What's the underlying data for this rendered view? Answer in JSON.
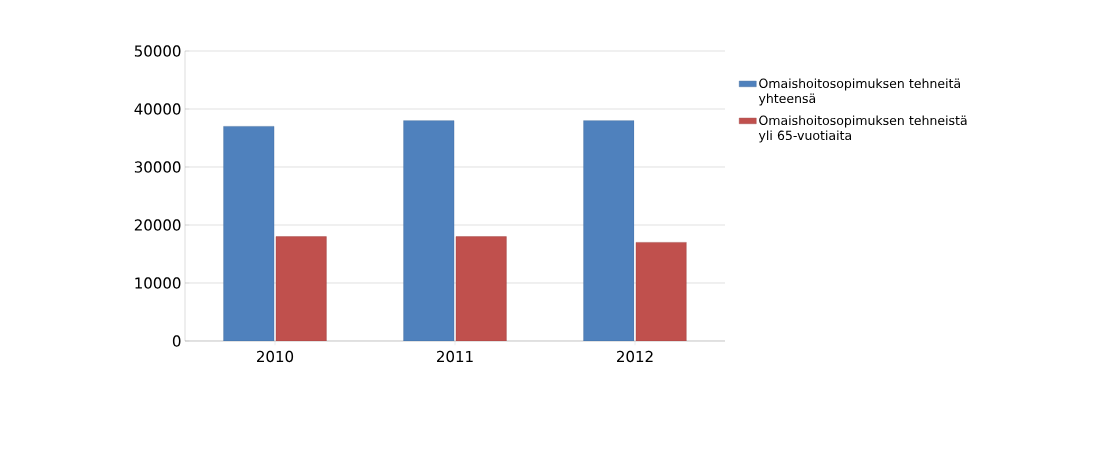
{
  "chart_data": {
    "type": "bar",
    "categories": [
      "2010",
      "2011",
      "2012"
    ],
    "series": [
      {
        "name": "Omaishoitosopimuksen tehneitä yhteensä",
        "color": "#4f81bd",
        "values": [
          37000,
          38000,
          38000
        ]
      },
      {
        "name": "Omaishoitosopimuksen tehneistä yli 65-vuotiaita",
        "color": "#c0504d",
        "values": [
          18000,
          18000,
          17000
        ]
      }
    ],
    "ylim": [
      0,
      50000
    ],
    "yticks": [
      0,
      10000,
      20000,
      30000,
      40000,
      50000
    ],
    "grid": "y",
    "legend": "right"
  }
}
